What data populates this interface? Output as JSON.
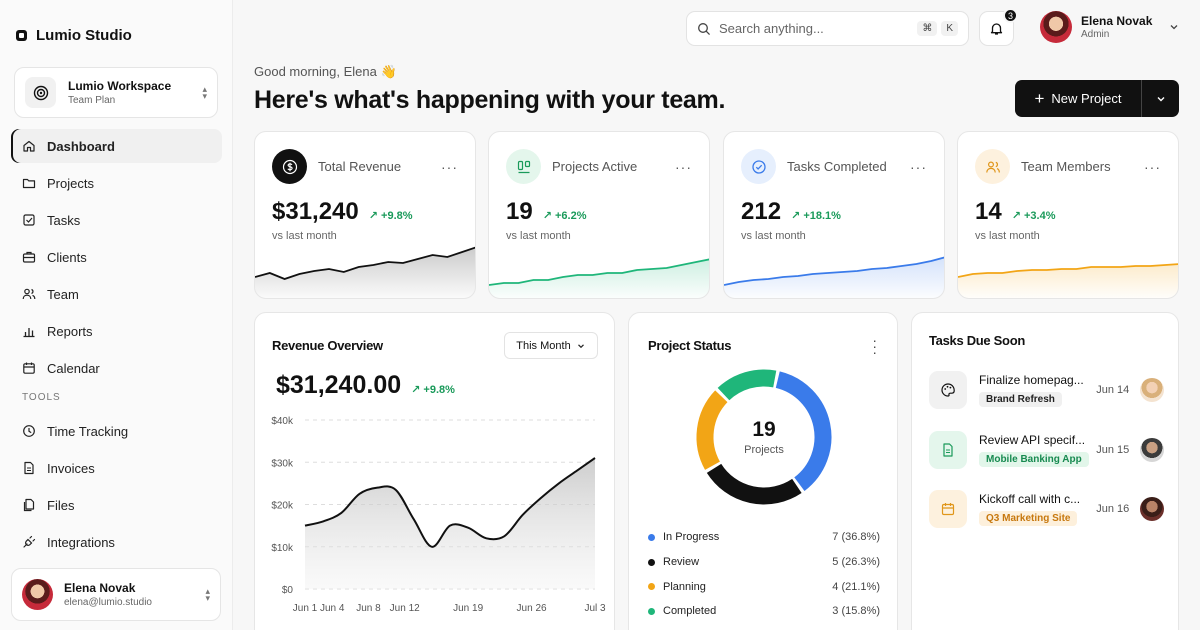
{
  "app": {
    "name": "Lumio Studio"
  },
  "workspace": {
    "name": "Lumio Workspace",
    "plan": "Team Plan"
  },
  "sidebar": {
    "items": [
      {
        "label": "Dashboard",
        "icon": "home-icon"
      },
      {
        "label": "Projects",
        "icon": "folder-icon"
      },
      {
        "label": "Tasks",
        "icon": "checkbox-icon"
      },
      {
        "label": "Clients",
        "icon": "briefcase-icon"
      },
      {
        "label": "Team",
        "icon": "users-icon"
      },
      {
        "label": "Reports",
        "icon": "bar-chart-icon"
      },
      {
        "label": "Calendar",
        "icon": "calendar-icon"
      }
    ],
    "tools_heading": "TOOLS",
    "tools": [
      {
        "label": "Time Tracking",
        "icon": "clock-icon"
      },
      {
        "label": "Invoices",
        "icon": "file-text-icon"
      },
      {
        "label": "Files",
        "icon": "files-icon"
      },
      {
        "label": "Integrations",
        "icon": "plug-icon"
      }
    ]
  },
  "current_user": {
    "name": "Elena Novak",
    "email": "elena@lumio.studio",
    "role": "Admin"
  },
  "search": {
    "placeholder": "Search anything...",
    "shortcut_mod": "⌘",
    "shortcut_key": "K"
  },
  "notifications": {
    "count": "3"
  },
  "header": {
    "greeting": "Good morning, Elena 👋",
    "headline": "Here's what's happening with your team.",
    "new_project_label": "New Project"
  },
  "kpis": [
    {
      "label": "Total Revenue",
      "value": "$31,240",
      "change": "+9.8%",
      "sub": "vs last month",
      "color": "#111111",
      "spark": [
        30,
        34,
        28,
        33,
        36,
        38,
        35,
        40,
        42,
        45,
        44,
        48,
        52,
        50,
        55,
        60
      ]
    },
    {
      "label": "Projects Active",
      "value": "19",
      "change": "+6.2%",
      "sub": "vs last month",
      "color": "#1fb67a",
      "spark": [
        22,
        24,
        24,
        27,
        27,
        30,
        32,
        32,
        34,
        34,
        37,
        38,
        39,
        42,
        45,
        48
      ]
    },
    {
      "label": "Tasks Completed",
      "value": "212",
      "change": "+18.1%",
      "sub": "vs last month",
      "color": "#3a7bea",
      "spark": [
        22,
        25,
        27,
        28,
        30,
        31,
        33,
        34,
        35,
        36,
        38,
        39,
        41,
        43,
        46,
        50
      ]
    },
    {
      "label": "Team Members",
      "value": "14",
      "change": "+3.4%",
      "sub": "vs last month",
      "color": "#f2a516",
      "spark": [
        30,
        33,
        34,
        34,
        36,
        37,
        37,
        38,
        38,
        40,
        40,
        40,
        41,
        41,
        42,
        43
      ]
    }
  ],
  "revenue": {
    "title": "Revenue Overview",
    "period": "This Month",
    "total": "$31,240.00",
    "change": "+9.8%"
  },
  "chart_data": {
    "type": "area",
    "x": [
      "Jun 1",
      "Jun 3",
      "Jun 5",
      "Jun 7",
      "Jun 9",
      "Jun 11",
      "Jun 13",
      "Jun 15",
      "Jun 17",
      "Jun 19",
      "Jun 21",
      "Jun 23",
      "Jun 25",
      "Jun 27",
      "Jun 29",
      "Jul 1",
      "Jul 3"
    ],
    "x_ticks": [
      "Jun 1",
      "Jun 4",
      "Jun 8",
      "Jun 12",
      "Jun 19",
      "Jun 26",
      "Jul 3"
    ],
    "series": [
      {
        "values": [
          15000,
          16000,
          18000,
          22500,
          24000,
          23500,
          16500,
          10000,
          15000,
          14500,
          12000,
          12500,
          17500,
          21500,
          25000,
          28000,
          31000
        ]
      }
    ],
    "y_ticks": [
      "$40k",
      "$30k",
      "$20k",
      "$10k",
      "$0"
    ],
    "ylim": [
      0,
      40000
    ],
    "grid": true
  },
  "project_status": {
    "title": "Project Status",
    "total": "19",
    "total_label": "Projects",
    "segments": [
      {
        "name": "In Progress",
        "count": 7,
        "display": "7 (36.8%)",
        "color": "#3a7bea"
      },
      {
        "name": "Review",
        "count": 5,
        "display": "5 (26.3%)",
        "color": "#111111"
      },
      {
        "name": "Planning",
        "count": 4,
        "display": "4 (21.1%)",
        "color": "#f2a516"
      },
      {
        "name": "Completed",
        "count": 3,
        "display": "3 (15.8%)",
        "color": "#1fb67a"
      }
    ]
  },
  "tasks_due": {
    "title": "Tasks Due Soon",
    "items": [
      {
        "title": "Finalize homepag...",
        "tag": "Brand Refresh",
        "date": "Jun 14",
        "icon": "palette-icon"
      },
      {
        "title": "Review API specif...",
        "tag": "Mobile Banking App",
        "date": "Jun 15",
        "icon": "document-icon"
      },
      {
        "title": "Kickoff call with c...",
        "tag": "Q3 Marketing Site",
        "date": "Jun 16",
        "icon": "calendar-icon"
      }
    ]
  }
}
